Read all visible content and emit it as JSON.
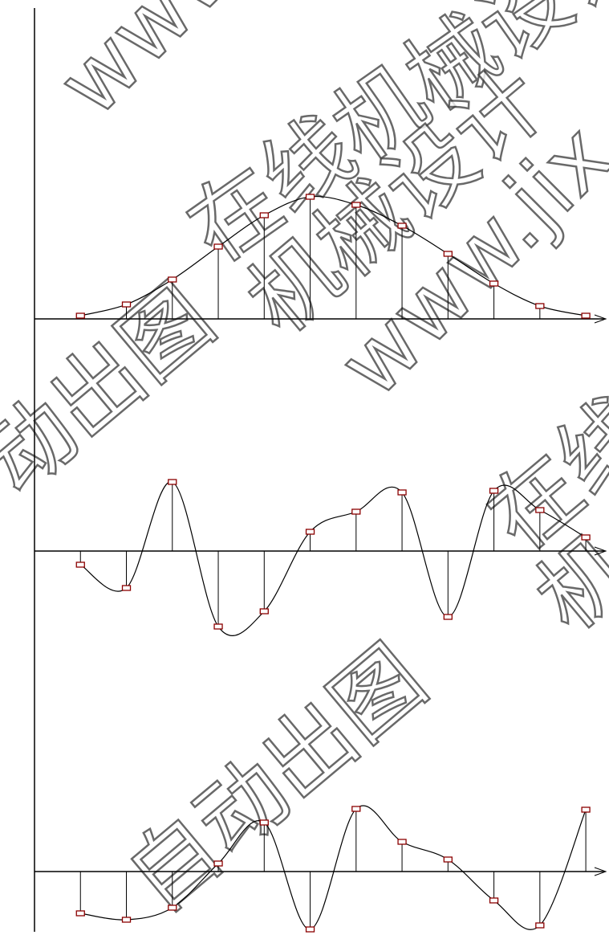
{
  "chart_data": [
    {
      "type": "stem",
      "x": [
        1,
        2,
        3,
        4,
        5,
        6,
        7,
        8,
        9,
        10,
        11,
        12
      ],
      "values": [
        0.4,
        1.8,
        4.9,
        9.0,
        12.9,
        15.2,
        14.2,
        11.6,
        8.1,
        4.4,
        1.6,
        0.4
      ],
      "xlim": [
        0,
        12.4
      ],
      "ylim": [
        0,
        38.2
      ],
      "color": "#8b0000"
    },
    {
      "type": "stem",
      "x": [
        1,
        2,
        3,
        4,
        5,
        6,
        7,
        8,
        9,
        10,
        11,
        12
      ],
      "values": [
        -1.7,
        -4.6,
        8.6,
        -9.4,
        -7.5,
        2.4,
        4.9,
        7.3,
        -8.2,
        7.5,
        5.1,
        1.7
      ],
      "xlim": [
        0,
        12.4
      ],
      "ylim": [
        -10,
        28
      ],
      "color": "#8b0000"
    },
    {
      "type": "stem",
      "x": [
        1,
        2,
        3,
        4,
        5,
        6,
        7,
        8,
        9,
        10,
        11,
        12
      ],
      "values": [
        -5.2,
        -6.0,
        -4.5,
        1.0,
        6.1,
        -7.2,
        7.8,
        3.7,
        1.5,
        -3.6,
        -6.7,
        7.7
      ],
      "xlim": [
        0,
        12.4
      ],
      "ylim": [
        -8,
        29
      ],
      "color": "#8b0000"
    }
  ],
  "watermarks": [
    "www",
    "在线机械设计",
    "机械设计",
    "www.jix",
    "自动出图",
    "动出图",
    "在线",
    "机"
  ]
}
